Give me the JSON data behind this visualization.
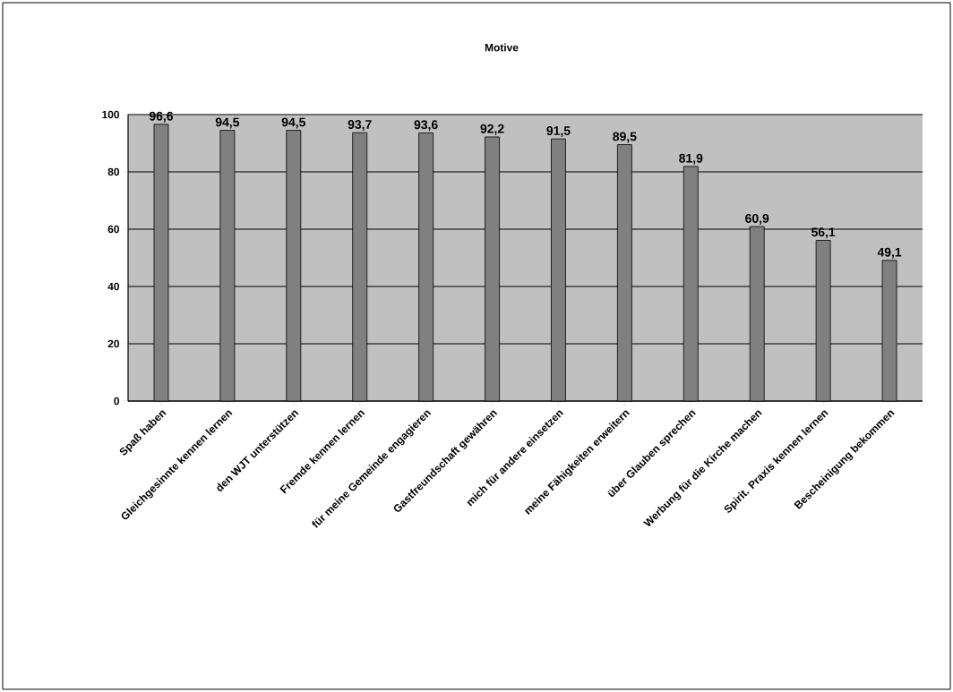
{
  "chart_data": {
    "type": "bar",
    "title": "Motive",
    "categories": [
      "Spaß haben",
      "Gleichgesinnte kennen lernen",
      "den WJT unterstützen",
      "Fremde kennen lernen",
      "für meine Gemeinde engagieren",
      "Gastfreundschaft gewähren",
      "mich für andere einsetzen",
      "meine Fähigkeiten erweitern",
      "über Glauben sprechen",
      "Werbung für die Kirche machen",
      "Spirit. Praxis kennen lernen",
      "Bescheinigung bekommen"
    ],
    "values": [
      96.6,
      94.5,
      94.5,
      93.7,
      93.6,
      92.2,
      91.5,
      89.5,
      81.9,
      60.9,
      56.1,
      49.1
    ],
    "value_labels": [
      "96,6",
      "94,5",
      "94,5",
      "93,7",
      "93,6",
      "92,2",
      "91,5",
      "89,5",
      "81,9",
      "60,9",
      "56,1",
      "49,1"
    ],
    "color": "#808080",
    "ylim": [
      0,
      100
    ],
    "yticks": [
      0,
      20,
      40,
      60,
      80,
      100
    ],
    "grid": "y"
  }
}
